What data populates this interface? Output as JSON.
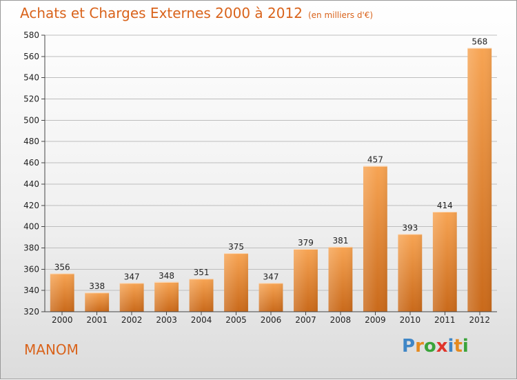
{
  "chart_data": {
    "type": "bar",
    "title": "Achats et Charges Externes 2000 à 2012",
    "unit": "(en milliers d'€)",
    "categories": [
      "2000",
      "2001",
      "2002",
      "2003",
      "2004",
      "2005",
      "2006",
      "2007",
      "2008",
      "2009",
      "2010",
      "2011",
      "2012"
    ],
    "values": [
      356,
      338,
      347,
      348,
      351,
      375,
      347,
      379,
      381,
      457,
      393,
      414,
      568
    ],
    "ylim": [
      320,
      580
    ],
    "yticks": [
      320,
      340,
      360,
      380,
      400,
      420,
      440,
      460,
      480,
      500,
      520,
      540,
      560,
      580
    ],
    "grid": true,
    "bar_color_top": "#f7a453",
    "bar_color_bottom": "#c9691a"
  },
  "city": "MANOM",
  "logo": {
    "text": "Proxiti",
    "letters": [
      {
        "char": "P",
        "color": "#3f86c6"
      },
      {
        "char": "r",
        "color": "#e58a1f"
      },
      {
        "char": "o",
        "color": "#3aa33a"
      },
      {
        "char": "x",
        "color": "#e0352b"
      },
      {
        "char": "i",
        "color": "#3f86c6"
      },
      {
        "char": "t",
        "color": "#e58a1f"
      },
      {
        "char": "i",
        "color": "#3aa33a"
      }
    ]
  },
  "colors": {
    "accent": "#d9631b",
    "axis_text": "#222222",
    "grid": "#bdbdbd"
  }
}
